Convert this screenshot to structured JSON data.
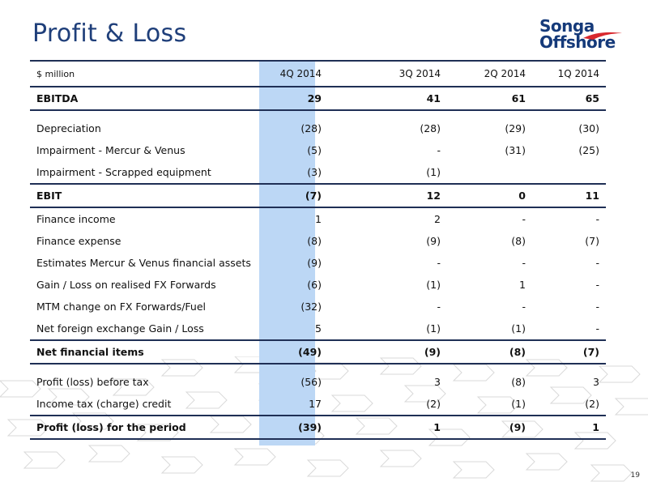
{
  "title": "Profit & Loss",
  "logo": {
    "line1": "Songa",
    "line2": "Offshore"
  },
  "table": {
    "header": [
      "$ million",
      "4Q 2014",
      "3Q 2014",
      "2Q 2014",
      "1Q 2014"
    ],
    "rows": [
      [
        "EBITDA",
        "29",
        "41",
        "61",
        "65"
      ],
      [
        "Depreciation",
        "(28)",
        "(28)",
        "(29)",
        "(30)"
      ],
      [
        "Impairment - Mercur & Venus",
        "(5)",
        "-",
        "(31)",
        "(25)"
      ],
      [
        "Impairment - Scrapped equipment",
        "(3)",
        "(1)",
        "",
        ""
      ],
      [
        "EBIT",
        "(7)",
        "12",
        "0",
        "11"
      ],
      [
        "Finance income",
        "1",
        "2",
        "-",
        "-"
      ],
      [
        "Finance expense",
        "(8)",
        "(9)",
        "(8)",
        "(7)"
      ],
      [
        "Estimates Mercur & Venus financial assets",
        "(9)",
        "-",
        "-",
        "-"
      ],
      [
        "Gain / Loss  on realised FX Forwards",
        "(6)",
        "(1)",
        "1",
        "-"
      ],
      [
        "MTM change on FX Forwards/Fuel",
        "(32)",
        "-",
        "-",
        "-"
      ],
      [
        "Net foreign exchange Gain / Loss",
        "5",
        "(1)",
        "(1)",
        "-"
      ],
      [
        "Net financial items",
        "(49)",
        "(9)",
        "(8)",
        "(7)"
      ],
      [
        "Profit (loss) before tax",
        "(56)",
        "3",
        "(8)",
        "3"
      ],
      [
        "Income tax (charge) credit",
        "17",
        "(2)",
        "(1)",
        "(2)"
      ],
      [
        "Profit (loss) for the period",
        "(39)",
        "1",
        "(9)",
        "1"
      ]
    ]
  },
  "page_number": "19",
  "colors": {
    "title": "#1f3f7a",
    "highlight": "#bcd7f5",
    "rule": "#1f2f55",
    "logo_red": "#d8282e",
    "logo_blue": "#153a7a"
  }
}
